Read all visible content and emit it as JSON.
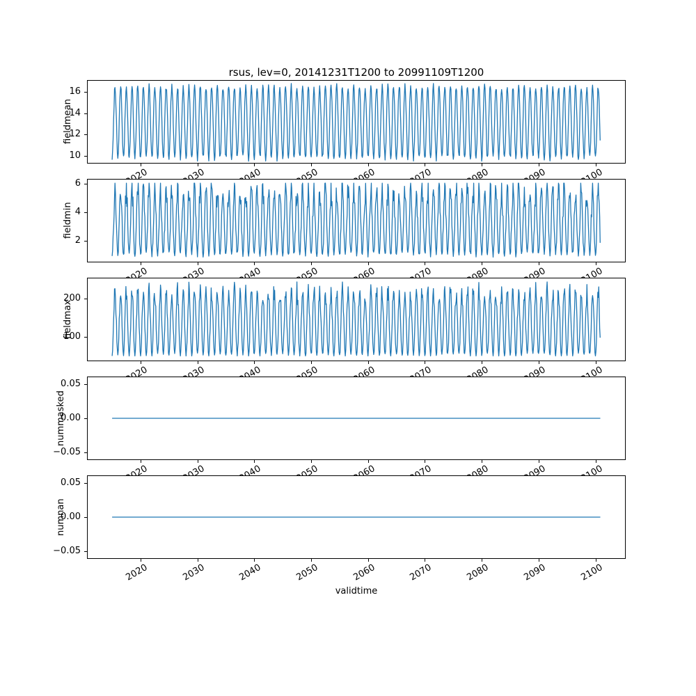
{
  "figure": {
    "title": "rsus, lev=0, 20141231T1200 to 20991109T1200",
    "xlabel": "validtime",
    "line_color": "#1f77b4",
    "x_unit": "year",
    "xlim": [
      2010.7,
      2105.2
    ],
    "x_range": [
      2015.0,
      2100.86
    ],
    "xticks": [
      2020,
      2030,
      2040,
      2050,
      2060,
      2070,
      2080,
      2090,
      2100
    ],
    "xtick_labels": [
      "2020",
      "2030",
      "2040",
      "2050",
      "2060",
      "2070",
      "2080",
      "2090",
      "2100"
    ]
  },
  "chart_data": [
    {
      "type": "line",
      "ylabel": "fieldmean",
      "ylim": [
        9.35,
        17.05
      ],
      "yticks": [
        10,
        12,
        14,
        16
      ],
      "ytick_labels": [
        "10",
        "12",
        "14",
        "16"
      ],
      "description": "Annual seasonal oscillation of field mean, monthly values 2015-2100",
      "value_range": [
        9.7,
        16.7
      ],
      "series": {
        "name": "fieldmean",
        "generator": {
          "kind": "seasonal",
          "points_per_year": 12,
          "mean": 13.15,
          "amplitude": 3.35,
          "phase": 0.25,
          "noise": 0.3,
          "seed": 7
        }
      }
    },
    {
      "type": "line",
      "ylabel": "fieldmin",
      "ylim": [
        0.55,
        6.3
      ],
      "yticks": [
        2,
        4,
        6
      ],
      "ytick_labels": [
        "2",
        "4",
        "6"
      ],
      "description": "Annual seasonal oscillation of field minimum, noisy summer peaks 4-6, winter troughs ~0.9",
      "value_range": [
        0.8,
        6.0
      ],
      "series": {
        "name": "fieldmin",
        "generator": {
          "kind": "seasonal",
          "points_per_year": 12,
          "mean": 3.3,
          "amplitude": 2.25,
          "phase": 0.25,
          "noise": 0.95,
          "top_biased": true,
          "min": 0.8,
          "max": 6.05,
          "seed": 13
        }
      }
    },
    {
      "type": "line",
      "ylabel": "fieldmax",
      "ylim": [
        38,
        252
      ],
      "yticks": [
        100,
        200
      ],
      "ytick_labels": [
        "100",
        "200"
      ],
      "description": "Annual seasonal oscillation of field maximum, summer peaks ~170-240, winter troughs ~50-60",
      "value_range": [
        50,
        243
      ],
      "series": {
        "name": "fieldmax",
        "generator": {
          "kind": "seasonal",
          "points_per_year": 12,
          "mean": 135,
          "amplitude": 83,
          "phase": 0.25,
          "noise": 26,
          "top_biased": true,
          "min": 50,
          "max": 244,
          "seed": 3
        }
      }
    },
    {
      "type": "line",
      "ylabel": "nummasked",
      "ylim": [
        -0.06,
        0.06
      ],
      "yticks": [
        0.05,
        0.0,
        -0.05
      ],
      "ytick_labels": [
        "0.05",
        "0.00",
        "−0.05"
      ],
      "description": "Number of masked points: constant zero for entire period",
      "value_range": [
        0,
        0
      ],
      "series": {
        "name": "nummasked",
        "generator": {
          "kind": "constant",
          "value": 0
        }
      }
    },
    {
      "type": "line",
      "ylabel": "numnan",
      "ylim": [
        -0.06,
        0.06
      ],
      "yticks": [
        0.05,
        0.0,
        -0.05
      ],
      "ytick_labels": [
        "0.05",
        "0.00",
        "−0.05"
      ],
      "description": "Number of NaN points: constant zero for entire period",
      "value_range": [
        0,
        0
      ],
      "series": {
        "name": "numnan",
        "generator": {
          "kind": "constant",
          "value": 0
        }
      }
    }
  ]
}
